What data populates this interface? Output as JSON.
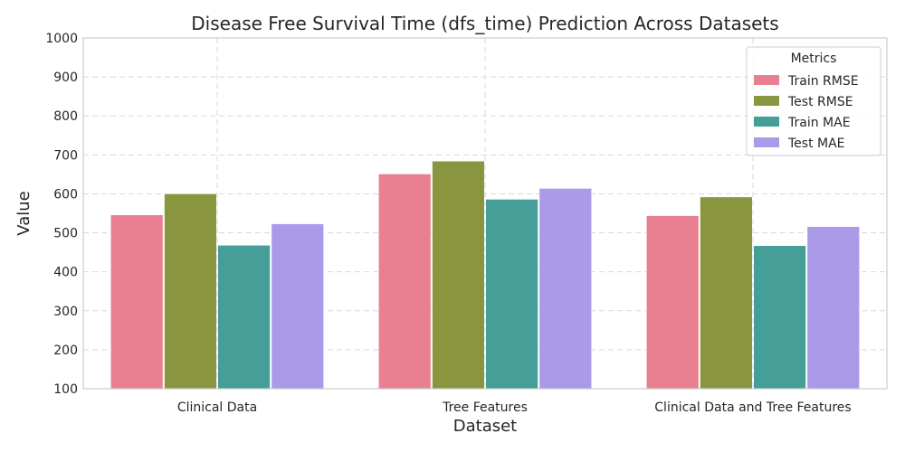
{
  "chart_data": {
    "type": "bar",
    "title": "Disease Free Survival Time (dfs_time) Prediction Across Datasets",
    "xlabel": "Dataset",
    "ylabel": "Value",
    "categories": [
      "Clinical Data",
      "Tree Features",
      "Clinical Data and Tree Features"
    ],
    "ylim": [
      100,
      1000
    ],
    "yticks": [
      100,
      200,
      300,
      400,
      500,
      600,
      700,
      800,
      900,
      1000
    ],
    "grid": true,
    "legend": {
      "title": "Metrics",
      "position": "top-right"
    },
    "series": [
      {
        "name": "Train RMSE",
        "color": "#e88091",
        "values": [
          546,
          651,
          544
        ]
      },
      {
        "name": "Test RMSE",
        "color": "#8a963f",
        "values": [
          600,
          684,
          592
        ]
      },
      {
        "name": "Train MAE",
        "color": "#459e97",
        "values": [
          468,
          586,
          467
        ]
      },
      {
        "name": "Test MAE",
        "color": "#aa9ae8",
        "values": [
          523,
          614,
          516
        ]
      }
    ]
  }
}
